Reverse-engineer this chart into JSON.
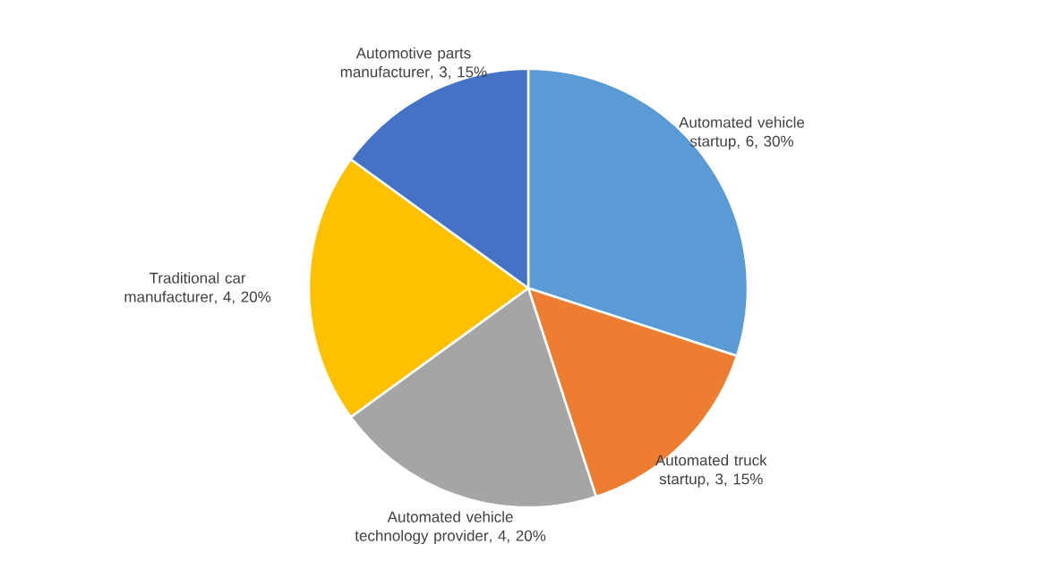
{
  "chart_data": {
    "type": "pie",
    "categories": [
      "Automated vehicle startup",
      "Automated truck startup",
      "Automated vehicle technology provider",
      "Traditional car manufacturer",
      "Automotive parts manufacturer"
    ],
    "values": [
      6,
      3,
      4,
      4,
      3
    ],
    "colors": [
      "#5b9bd5",
      "#ed7d31",
      "#a5a5a5",
      "#ffc000",
      "#4472c4"
    ],
    "value_labels": [
      ", 6, 30%",
      ", 3, 15%",
      ", 4, 20%",
      ", 4, 20%",
      ", 3, 15%"
    ]
  }
}
